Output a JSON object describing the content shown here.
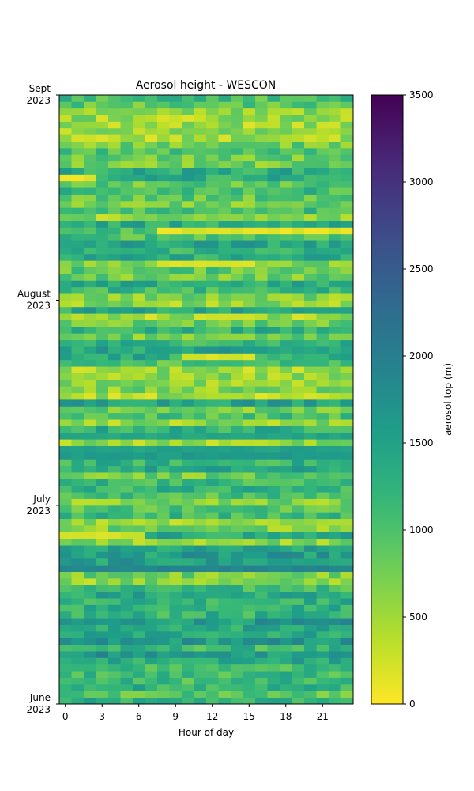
{
  "chart_data": {
    "type": "heatmap",
    "title": "Aerosol height - WESCON",
    "xlabel": "Hour of day",
    "x_ticks": [
      "0",
      "3",
      "6",
      "9",
      "12",
      "15",
      "18",
      "21"
    ],
    "x_range": [
      -0.5,
      23.5
    ],
    "y_ticks": [
      {
        "day": 0,
        "line1": "June",
        "line2": "2023"
      },
      {
        "day": 30,
        "line1": "July",
        "line2": "2023"
      },
      {
        "day": 61,
        "line1": "August",
        "line2": "2023"
      },
      {
        "day": 92,
        "line1": "Sept",
        "line2": "2023"
      }
    ],
    "y_range": [
      0,
      92
    ],
    "n_days": 92,
    "colormap": "viridis_r",
    "colorbar": {
      "label": "aerosol top (m)",
      "vmin": 0,
      "vmax": 3500,
      "ticks": [
        "0",
        "500",
        "1000",
        "1500",
        "2000",
        "2500",
        "3000",
        "3500"
      ]
    },
    "notable_rows": [
      {
        "day": 20,
        "hours": [
          0,
          23
        ],
        "approx_value": 1900
      },
      {
        "day": 25,
        "hours": [
          0,
          6
        ],
        "approx_value": 250
      },
      {
        "day": 37,
        "hours": [
          0,
          23
        ],
        "approx_value": 1600
      },
      {
        "day": 38,
        "hours": [
          0,
          23
        ],
        "approx_value": 1500
      },
      {
        "day": 40,
        "hours": [
          0,
          23
        ],
        "approx_value": 1450
      },
      {
        "day": 52,
        "hours": [
          10,
          15
        ],
        "approx_value": 200
      },
      {
        "day": 66,
        "hours": [
          8,
          15
        ],
        "approx_value": 200
      },
      {
        "day": 71,
        "hours": [
          8,
          23
        ],
        "approx_value": 150
      },
      {
        "day": 79,
        "hours": [
          0,
          2
        ],
        "approx_value": 100
      },
      {
        "day": 88,
        "hours": [
          8,
          10
        ],
        "approx_value": 250
      }
    ],
    "value_range_typical": [
      300,
      2000
    ]
  }
}
